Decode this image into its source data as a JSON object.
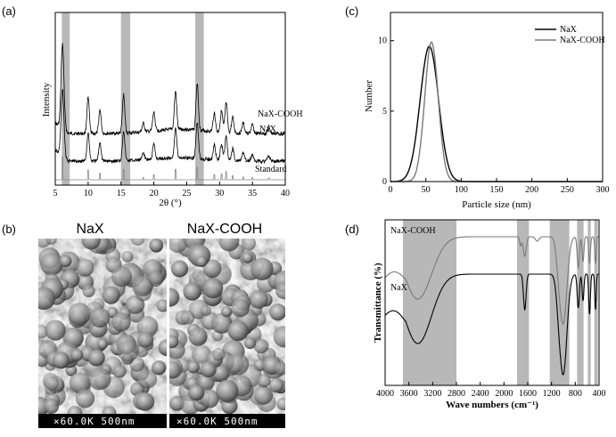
{
  "panels": {
    "a": {
      "label": "(a)"
    },
    "b": {
      "label": "(b)"
    },
    "c": {
      "label": "(c)"
    },
    "d": {
      "label": "(d)"
    }
  },
  "colors": {
    "shade": "#b8b8b8",
    "black": "#000000",
    "gray": "#7a7a7a",
    "standard": "#888888"
  },
  "chart_data": [
    {
      "id": "xrd",
      "type": "line",
      "xlabel": "2θ (°)",
      "ylabel": "Intensity",
      "xlim": [
        5,
        40
      ],
      "xticks": [
        5,
        10,
        15,
        20,
        25,
        30,
        35,
        40
      ],
      "shaded_ranges": [
        [
          6.0,
          7.2
        ],
        [
          15.0,
          16.4
        ],
        [
          26.3,
          27.6
        ]
      ],
      "series": [
        {
          "name": "NaX-COOH",
          "offset": 1.0,
          "color": "black"
        },
        {
          "name": "NaX",
          "offset": 0.5,
          "color": "black"
        },
        {
          "name": "Standard",
          "offset": 0.1,
          "color": "standard"
        }
      ],
      "peaks_2theta": [
        6.1,
        10.0,
        11.8,
        15.4,
        18.4,
        20.0,
        23.3,
        26.6,
        29.2,
        30.3,
        31.0,
        32.0,
        33.6,
        35.0,
        37.5
      ]
    },
    {
      "id": "psd",
      "type": "line",
      "xlabel": "Particle size (nm)",
      "ylabel": "Number",
      "xlim": [
        0,
        300
      ],
      "ylim": [
        0,
        12
      ],
      "xticks": [
        0,
        50,
        100,
        150,
        200,
        250,
        300
      ],
      "yticks": [
        0,
        5,
        10
      ],
      "legend_position": "top-right",
      "series": [
        {
          "name": "NaX",
          "color": "black",
          "mean_nm": 55,
          "sigma_nm": 13.0,
          "peak": 9.6
        },
        {
          "name": "NaX-COOH",
          "color": "gray",
          "mean_nm": 58,
          "sigma_nm": 9.5,
          "peak": 9.9
        }
      ]
    },
    {
      "id": "ftir",
      "type": "line",
      "xlabel": "Wave numbers (cm⁻¹)",
      "ylabel": "Transmittance (%)",
      "xlim": [
        4000,
        400
      ],
      "xticks": [
        4000,
        3600,
        3200,
        2800,
        2400,
        2000,
        1600,
        1200,
        800,
        400
      ],
      "shaded_ranges": [
        [
          3700,
          2800
        ],
        [
          1780,
          1580
        ],
        [
          1230,
          900
        ],
        [
          770,
          660
        ],
        [
          590,
          540
        ],
        [
          480,
          420
        ]
      ],
      "series": [
        {
          "name": "NaX-COOH",
          "color": "gray"
        },
        {
          "name": "NaX",
          "color": "black"
        }
      ]
    }
  ],
  "sem": {
    "left": {
      "title": "NaX",
      "scale": "×60.0K  500nm"
    },
    "right": {
      "title": "NaX-COOH",
      "scale": "×60.0K  500nm"
    }
  }
}
